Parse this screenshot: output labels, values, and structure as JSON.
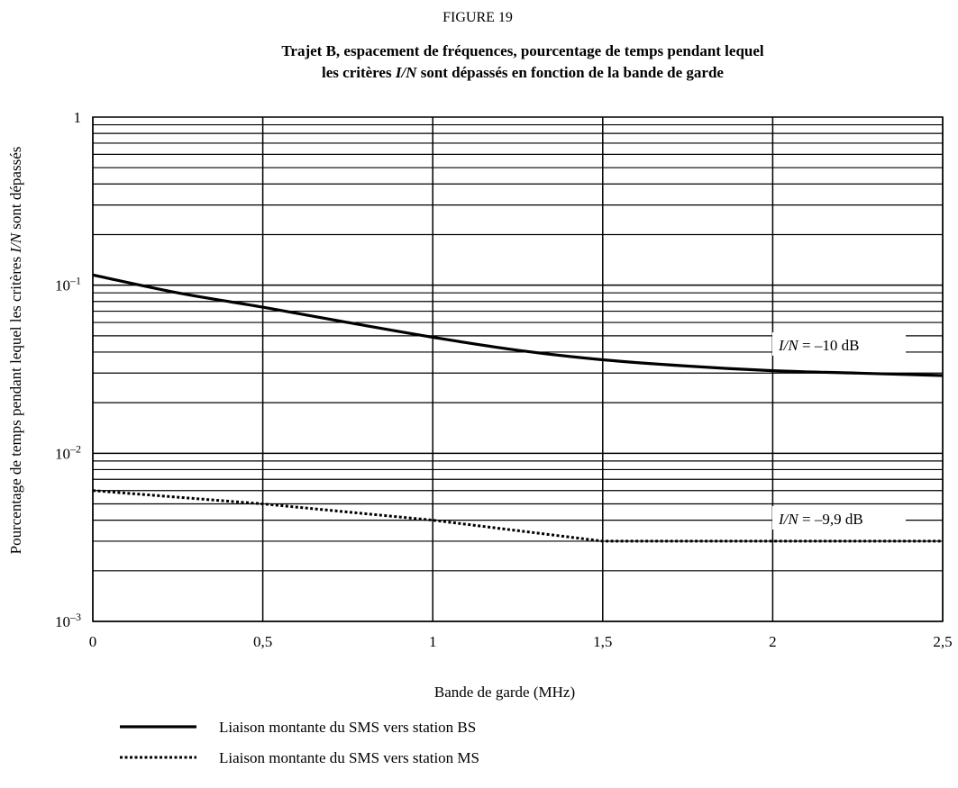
{
  "figure_label": "FIGURE 19",
  "chart_data": {
    "type": "line",
    "title_line1": "Trajet B, espacement de fréquences, pourcentage de temps pendant lequel",
    "title_line2_prefix": "les critères ",
    "title_line2_italic": "I/N",
    "title_line2_suffix": " sont dépassés en fonction de la bande de garde",
    "xlabel": "Bande de garde (MHz)",
    "ylabel_prefix": "Pourcentage de temps pendant lequel les critères ",
    "ylabel_italic": "I/N",
    "ylabel_suffix": " sont dépassés",
    "x_ticks": [
      "0",
      "0,5",
      "1",
      "1,5",
      "2",
      "2,5"
    ],
    "y_ticks": [
      {
        "base": "10",
        "exp": "–3",
        "value": 0.001
      },
      {
        "base": "10",
        "exp": "–2",
        "value": 0.01
      },
      {
        "base": "10",
        "exp": "–1",
        "value": 0.1
      },
      {
        "base": "1",
        "exp": "",
        "value": 1
      }
    ],
    "xlim": [
      0,
      2.5
    ],
    "ylim": [
      0.001,
      1
    ],
    "y_scale": "log",
    "grid": true,
    "legend_position": "bottom-left",
    "series": [
      {
        "name": "Liaison montante du SMS vers station BS",
        "style": "solid",
        "color": "#000000",
        "annotation_italic": "I/N",
        "annotation_text": " = –10 dB",
        "x": [
          0,
          0.25,
          0.5,
          0.75,
          1.0,
          1.25,
          1.5,
          1.75,
          2.0,
          2.25,
          2.5
        ],
        "y": [
          0.115,
          0.09,
          0.074,
          0.06,
          0.049,
          0.041,
          0.036,
          0.033,
          0.031,
          0.03,
          0.029
        ]
      },
      {
        "name": "Liaison montante du SMS vers station MS",
        "style": "dotted",
        "color": "#000000",
        "annotation_italic": "I/N",
        "annotation_text": " = –9,9 dB",
        "x": [
          0,
          0.5,
          1.0,
          1.5,
          1.75,
          2.0,
          2.5
        ],
        "y": [
          0.006,
          0.005,
          0.004,
          0.003,
          0.003,
          0.003,
          0.003
        ]
      }
    ]
  }
}
